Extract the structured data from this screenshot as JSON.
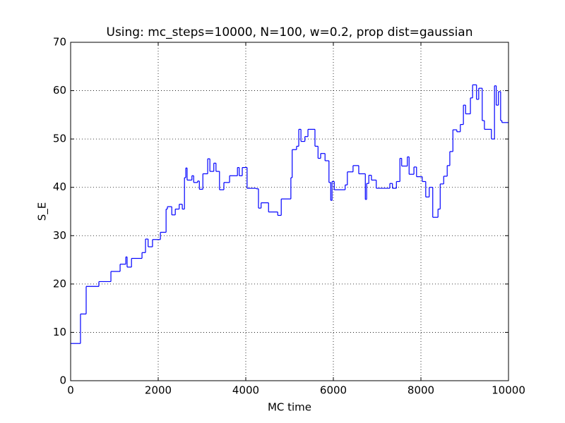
{
  "chart_data": {
    "type": "step",
    "title": "Using: mc_steps=10000, N=100, w=0.2, prop dist=gaussian",
    "x_label": "MC time",
    "y_label": "S_E",
    "x": [
      0,
      225,
      355,
      645,
      920,
      1130,
      1260,
      1290,
      1390,
      1630,
      1710,
      1770,
      1870,
      2050,
      2180,
      2210,
      2310,
      2390,
      2480,
      2550,
      2600,
      2630,
      2660,
      2770,
      2810,
      2900,
      2940,
      3020,
      3130,
      3180,
      3270,
      3320,
      3400,
      3500,
      3630,
      3810,
      3850,
      3920,
      4030,
      4240,
      4290,
      4350,
      4520,
      4730,
      4810,
      5030,
      5060,
      5160,
      5210,
      5260,
      5350,
      5420,
      5580,
      5650,
      5710,
      5810,
      5900,
      5940,
      5970,
      6020,
      6270,
      6320,
      6450,
      6580,
      6730,
      6760,
      6810,
      6870,
      6980,
      7290,
      7350,
      7440,
      7520,
      7560,
      7690,
      7730,
      7840,
      7900,
      8030,
      8110,
      8190,
      8270,
      8390,
      8440,
      8520,
      8600,
      8660,
      8730,
      8820,
      8900,
      8970,
      9020,
      9130,
      9180,
      9270,
      9320,
      9400,
      9450,
      9610,
      9680,
      9720,
      9770,
      9820,
      9850,
      10000
    ],
    "series": [
      {
        "color": "#0000ff",
        "values": [
          7.7,
          13.8,
          19.5,
          20.5,
          22.6,
          24.1,
          25.6,
          23.5,
          25.3,
          26.5,
          29.3,
          27.7,
          29.2,
          30.7,
          35.5,
          36.0,
          34.3,
          35.5,
          36.5,
          35.5,
          42,
          44,
          41.5,
          42.4,
          41,
          41.3,
          39.6,
          42.8,
          45.9,
          43.3,
          45,
          43.3,
          39.5,
          41,
          42.4,
          44.1,
          42.4,
          44.1,
          39.8,
          39.7,
          35.7,
          36.8,
          34.9,
          34.2,
          37.6,
          42,
          47.8,
          48.5,
          52,
          49.5,
          50.5,
          52,
          48.5,
          46,
          47,
          45.5,
          41,
          37.3,
          41.2,
          39.5,
          40.5,
          43.2,
          44.5,
          42.8,
          37.5,
          40.8,
          42.5,
          41.5,
          39.8,
          40.8,
          39.8,
          41.2,
          46,
          44.4,
          46.3,
          42.7,
          44.2,
          42.2,
          41.2,
          38,
          40,
          33.8,
          35.5,
          40.7,
          42.3,
          44.5,
          47.4,
          51.9,
          51.5,
          53,
          57,
          55.2,
          58.5,
          61.2,
          58.2,
          60.5,
          53.8,
          52,
          50,
          61,
          57,
          59.8,
          53.8,
          53.4,
          53.4
        ]
      }
    ],
    "xlim": [
      0,
      10000
    ],
    "xticks": [
      0,
      2000,
      4000,
      6000,
      8000,
      10000
    ],
    "ylim": [
      0,
      70
    ],
    "yticks": [
      0,
      10,
      20,
      30,
      40,
      50,
      60,
      70
    ],
    "grid": true
  }
}
